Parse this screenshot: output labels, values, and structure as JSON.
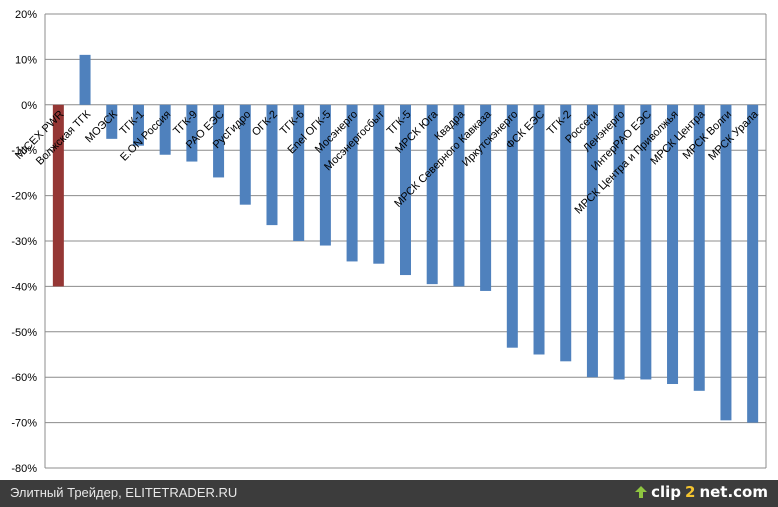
{
  "chart_data": {
    "type": "bar",
    "ylim": [
      -80,
      20
    ],
    "yticks": [
      "-80%",
      "-70%",
      "-60%",
      "-50%",
      "-40%",
      "-30%",
      "-20%",
      "-10%",
      "0%",
      "10%",
      "20%"
    ],
    "grid": true,
    "colors": {
      "default": "#4f81bd",
      "highlight": "#953735"
    },
    "categories": [
      "MICEX PWR",
      "Волжская ТГК",
      "МОЭСК",
      "ТГК-1",
      "E.ON Россия",
      "ТГК-9",
      "РАО ЕЭС",
      "РусГидро",
      "ОГК-2",
      "ТГК-6",
      "Enel ОГК-5",
      "Мосэнерго",
      "Мосэнергосбыт",
      "ТГК-5",
      "МРСК Юга",
      "Квадра",
      "МРСК Северного Кавказа",
      "Иркутскэнерго",
      "ФСК ЕЭС",
      "ТГК-2",
      "Россети",
      "Ленэнерго",
      "ИнтерРАО ЕЭС",
      "МРСК Центра и Приволжья",
      "МРСК Центра",
      "МРСК Волги",
      "МРСК Урала"
    ],
    "values": [
      -40,
      11,
      -7.5,
      -9,
      -11,
      -12.5,
      -16,
      -22,
      -26.5,
      -30,
      -31,
      -34.5,
      -35,
      -37.5,
      -39.5,
      -40,
      -41,
      -53.5,
      -55,
      -56.5,
      -60,
      -60.5,
      -60.5,
      -61.5,
      -63,
      -69.5,
      -70
    ],
    "highlight_index": 0
  },
  "footer": {
    "source": "Элитный Трейдер, ELITETRADER.RU",
    "brand_part1": "clip",
    "brand_part2": "2",
    "brand_part3": "net.com"
  }
}
